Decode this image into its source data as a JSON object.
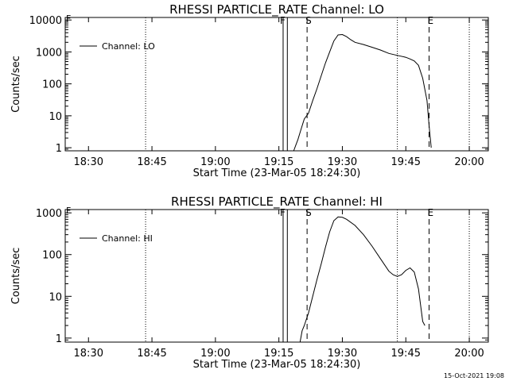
{
  "timestamp": "15-Oct-2021 19:08",
  "chart_data": [
    {
      "type": "line",
      "title": "RHESSI PARTICLE_RATE Channel: LO",
      "xlabel": "Start Time (23-Mar-05 18:24:30)",
      "ylabel": "Counts/sec",
      "y_scale": "log",
      "xlim": [
        "18:24:30",
        "20:04:30"
      ],
      "ylim": [
        0.8,
        12000
      ],
      "x_ticks": [
        "18:30",
        "18:45",
        "19:00",
        "19:15",
        "19:30",
        "19:45",
        "20:00"
      ],
      "y_ticks": [
        {
          "value": 1,
          "label": "1"
        },
        {
          "value": 10,
          "label": "10"
        },
        {
          "value": 100,
          "label": "100"
        },
        {
          "value": 1000,
          "label": "1000"
        },
        {
          "value": 10000,
          "label": "10000"
        }
      ],
      "legend": {
        "placement": "top-left",
        "entries": [
          "Channel: LO"
        ]
      },
      "markers": [
        {
          "label": "F",
          "time": "19:16:00",
          "style": "solid"
        },
        {
          "label": "",
          "time": "19:17:00",
          "style": "solid"
        },
        {
          "label": "S",
          "time": "19:21:40",
          "style": "dashed"
        },
        {
          "label": "E",
          "time": "19:50:30",
          "style": "dashed"
        }
      ],
      "dotted_lines": [
        "18:43:30",
        "19:43:00",
        "20:00:00"
      ],
      "top_left_tick_label": "F",
      "series": [
        {
          "name": "Channel: LO",
          "points": [
            [
              "19:18:30",
              0.8
            ],
            [
              "19:19:00",
              1.2
            ],
            [
              "19:19:30",
              1.8
            ],
            [
              "19:20:00",
              3
            ],
            [
              "19:21:00",
              8
            ],
            [
              "19:22:00",
              12
            ],
            [
              "19:23:00",
              30
            ],
            [
              "19:24:00",
              70
            ],
            [
              "19:25:00",
              180
            ],
            [
              "19:26:00",
              450
            ],
            [
              "19:27:00",
              1000
            ],
            [
              "19:28:00",
              2200
            ],
            [
              "19:29:00",
              3400
            ],
            [
              "19:30:00",
              3500
            ],
            [
              "19:31:00",
              3000
            ],
            [
              "19:32:00",
              2400
            ],
            [
              "19:33:00",
              2000
            ],
            [
              "19:35:00",
              1700
            ],
            [
              "19:37:00",
              1400
            ],
            [
              "19:39:00",
              1150
            ],
            [
              "19:41:00",
              900
            ],
            [
              "19:43:00",
              780
            ],
            [
              "19:45:00",
              680
            ],
            [
              "19:46:00",
              600
            ],
            [
              "19:47:00",
              520
            ],
            [
              "19:48:00",
              380
            ],
            [
              "19:49:00",
              150
            ],
            [
              "19:50:00",
              30
            ],
            [
              "19:50:30",
              5
            ],
            [
              "19:51:00",
              1
            ]
          ]
        }
      ]
    },
    {
      "type": "line",
      "title": "RHESSI PARTICLE_RATE Channel: HI",
      "xlabel": "Start Time (23-Mar-05 18:24:30)",
      "ylabel": "Counts/sec",
      "y_scale": "log",
      "xlim": [
        "18:24:30",
        "20:04:30"
      ],
      "ylim": [
        0.8,
        1200
      ],
      "x_ticks": [
        "18:30",
        "18:45",
        "19:00",
        "19:15",
        "19:30",
        "19:45",
        "20:00"
      ],
      "y_ticks": [
        {
          "value": 1,
          "label": "1"
        },
        {
          "value": 10,
          "label": "10"
        },
        {
          "value": 100,
          "label": "100"
        },
        {
          "value": 1000,
          "label": "1000"
        }
      ],
      "legend": {
        "placement": "top-left",
        "entries": [
          "Channel: HI"
        ]
      },
      "markers": [
        {
          "label": "F",
          "time": "19:16:00",
          "style": "solid"
        },
        {
          "label": "",
          "time": "19:17:00",
          "style": "solid"
        },
        {
          "label": "S",
          "time": "19:21:40",
          "style": "dashed"
        },
        {
          "label": "E",
          "time": "19:50:30",
          "style": "dashed"
        }
      ],
      "dotted_lines": [
        "18:43:30",
        "19:43:00",
        "20:00:00"
      ],
      "top_left_tick_label": "F",
      "series": [
        {
          "name": "Channel: HI",
          "points": [
            [
              "19:20:00",
              0.8
            ],
            [
              "19:20:30",
              1.5
            ],
            [
              "19:21:00",
              2
            ],
            [
              "19:22:00",
              4
            ],
            [
              "19:23:00",
              10
            ],
            [
              "19:24:00",
              25
            ],
            [
              "19:25:00",
              60
            ],
            [
              "19:26:00",
              150
            ],
            [
              "19:27:00",
              350
            ],
            [
              "19:28:00",
              650
            ],
            [
              "19:29:00",
              800
            ],
            [
              "19:30:00",
              780
            ],
            [
              "19:31:00",
              700
            ],
            [
              "19:33:00",
              500
            ],
            [
              "19:35:00",
              300
            ],
            [
              "19:37:00",
              160
            ],
            [
              "19:39:00",
              80
            ],
            [
              "19:41:00",
              40
            ],
            [
              "19:42:00",
              33
            ],
            [
              "19:43:00",
              30
            ],
            [
              "19:44:00",
              33
            ],
            [
              "19:45:00",
              42
            ],
            [
              "19:46:00",
              48
            ],
            [
              "19:47:00",
              38
            ],
            [
              "19:48:00",
              15
            ],
            [
              "19:49:00",
              2.5
            ],
            [
              "19:49:30",
              2
            ]
          ]
        }
      ]
    }
  ]
}
